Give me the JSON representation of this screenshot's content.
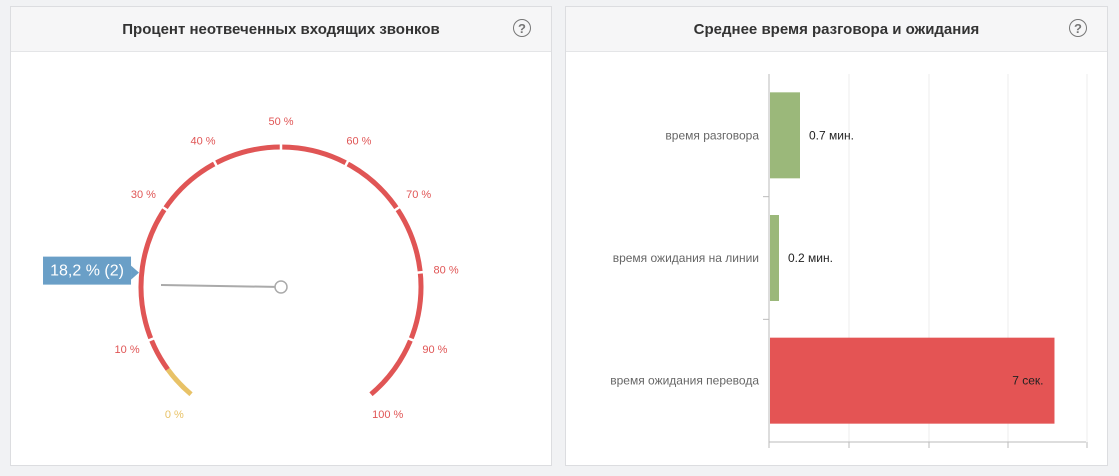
{
  "left_panel": {
    "title": "Процент неотвеченных входящих звонков",
    "help_icon": "question-circle-icon"
  },
  "right_panel": {
    "title": "Среднее время разговора и ожидания",
    "help_icon": "question-circle-icon"
  },
  "chart_data": [
    {
      "type": "gauge",
      "min": 0,
      "max": 100,
      "value": 18.2,
      "value_label": "18,2 % (2)",
      "tick_labels": [
        "0 %",
        "10 %",
        "30 %",
        "40 %",
        "50 %",
        "60 %",
        "70 %",
        "80 %",
        "90 %",
        "100 %"
      ],
      "tick_values": [
        0,
        10,
        30,
        40,
        50,
        60,
        70,
        80,
        90,
        100
      ],
      "bands": [
        {
          "from": 0,
          "to": 5,
          "color": "#e8c267"
        },
        {
          "from": 5,
          "to": 100,
          "color": "#e05555"
        }
      ],
      "colors": {
        "accent": "#e05555",
        "low": "#e8c267",
        "callout": "#6a9fc7",
        "needle": "#aaaaaa"
      }
    },
    {
      "type": "bar",
      "orientation": "horizontal",
      "categories": [
        "время разговора",
        "время ожидания на линии",
        "время ожидания перевода"
      ],
      "values": [
        0.7,
        0.2,
        7
      ],
      "data_labels": [
        "0.7 мин.",
        "0.2 мин.",
        "7 сек."
      ],
      "colors": [
        "#9bb87a",
        "#9bb87a",
        "#e45454"
      ],
      "grid": true
    }
  ]
}
